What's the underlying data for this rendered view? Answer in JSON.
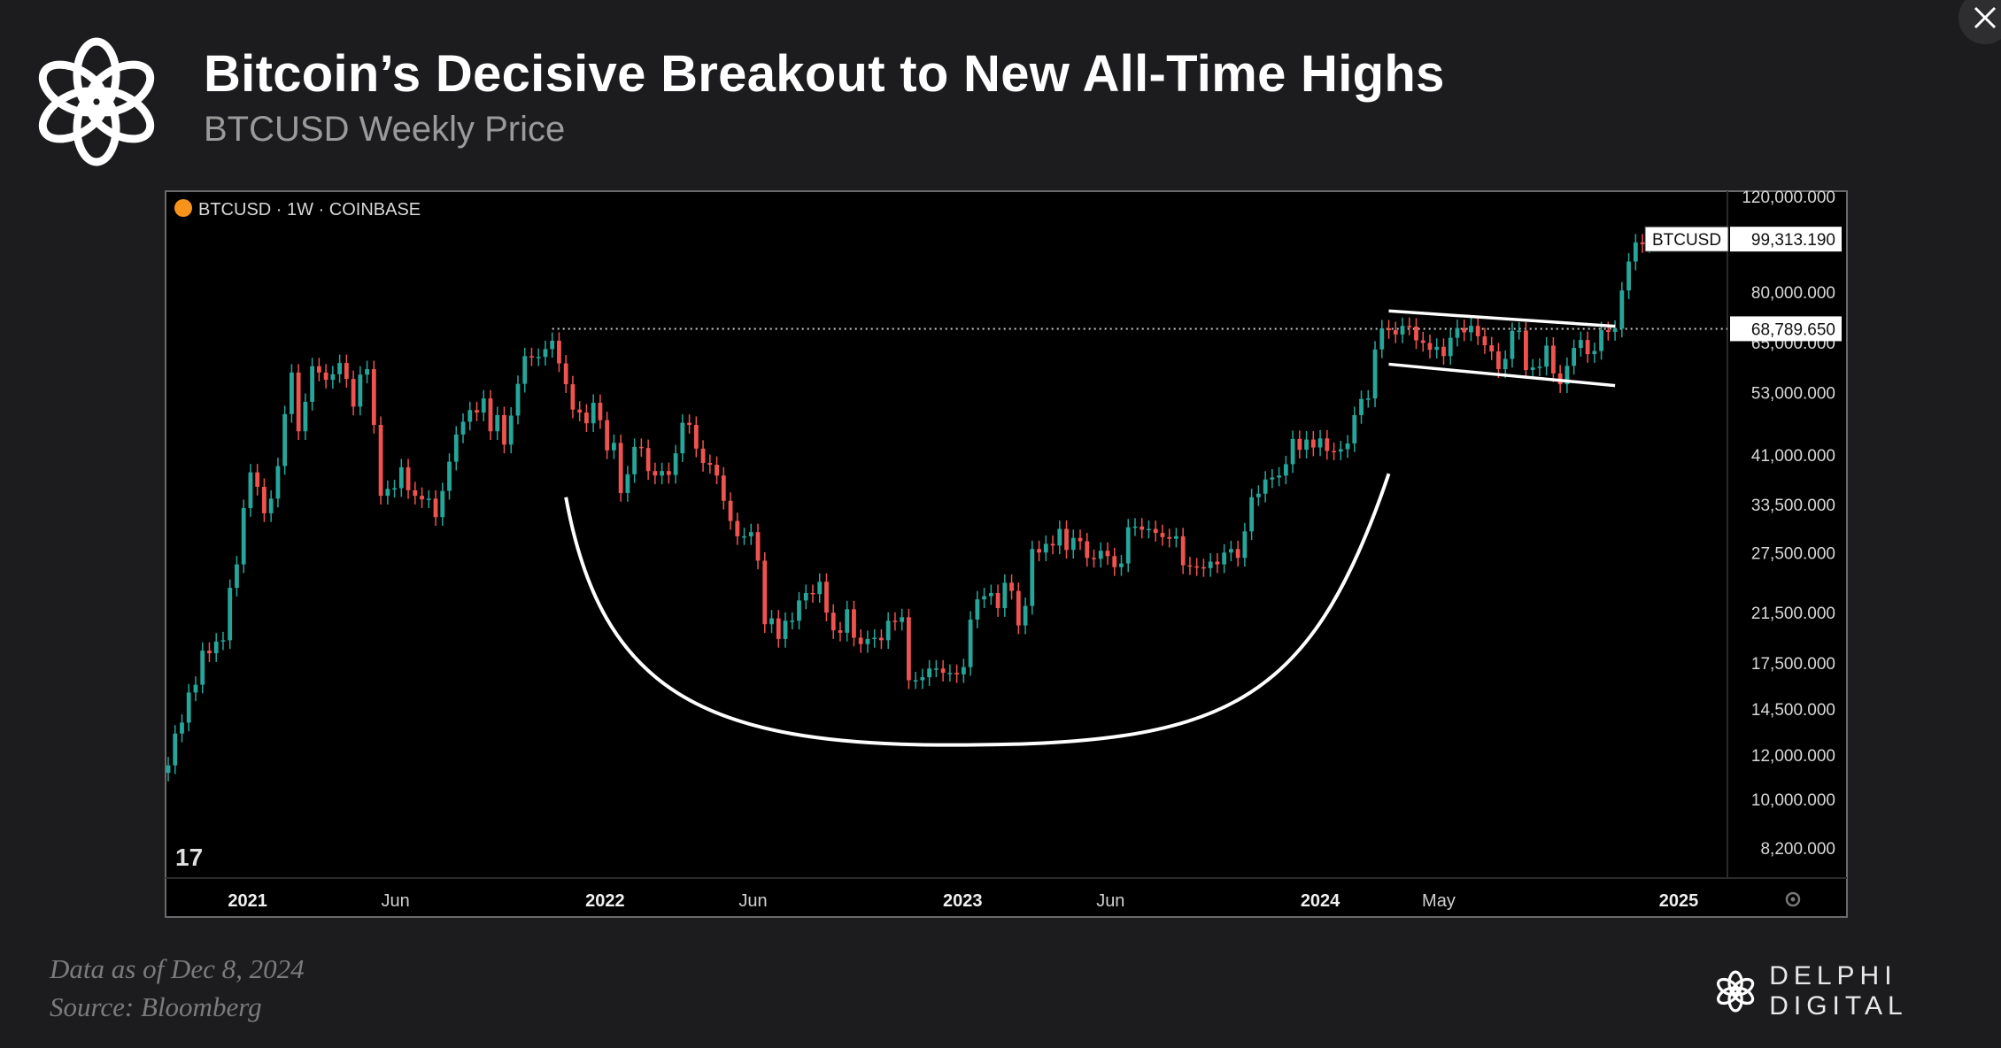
{
  "header": {
    "title": "Bitcoin’s Decisive Breakout to New All-Time Highs",
    "subtitle": "BTCUSD Weekly Price"
  },
  "footer": {
    "date_note": "Data as of Dec 8, 2024",
    "source_note": "Source: Bloomberg"
  },
  "brand": {
    "name": "DELPHI DIGITAL"
  },
  "icons": {
    "logo": "knot-logo-icon",
    "close": "close-icon",
    "symbol": "bitcoin-dot-icon",
    "tv": "tradingview-logo-icon",
    "settings": "gear-icon"
  },
  "colors": {
    "up": "#26a69a",
    "down": "#ef5350",
    "background": "#000000",
    "page": "#1c1c1e"
  },
  "chart_data": {
    "type": "candlestick",
    "symbol_label": "BTCUSD · 1W · COINBASE",
    "scale": "log",
    "ylim": [
      7300,
      120000
    ],
    "y_ticks": [
      "120,000.000",
      "80,000.000",
      "65,000.000",
      "53,000.000",
      "41,000.000",
      "33,500.000",
      "27,500.000",
      "21,500.000",
      "17,500.000",
      "14,500.000",
      "12,000.000",
      "10,000.000",
      "8,200.000"
    ],
    "x_ticks": [
      "2021",
      "Jun",
      "2022",
      "Jun",
      "2023",
      "Jun",
      "2024",
      "May",
      "2025"
    ],
    "x_tick_dates": [
      "2021-01-01",
      "2021-06-01",
      "2022-01-01",
      "2022-06-01",
      "2023-01-01",
      "2023-06-01",
      "2024-01-01",
      "2024-05-01",
      "2025-01-01"
    ],
    "x_range": [
      "2020-10-12",
      "2025-02-17"
    ],
    "price_labels": [
      {
        "name": "BTCUSD",
        "value": "99,313.190",
        "price": 99313.19
      },
      {
        "name": "",
        "value": "68,789.650",
        "price": 68789.65
      }
    ],
    "ath_line": {
      "price": 68789.65,
      "from": "2021-11-08"
    },
    "annotations": {
      "cup_curve": {
        "from": [
          "2021-11-22",
          34500
        ],
        "bottom": [
          "2022-12-19",
          12500
        ],
        "to": [
          "2024-03-11",
          38000
        ]
      },
      "flag_channel": {
        "upper": [
          [
            "2024-03-11",
            74000
          ],
          [
            "2024-10-28",
            69500
          ]
        ],
        "lower": [
          [
            "2024-03-11",
            59500
          ],
          [
            "2024-10-28",
            54500
          ]
        ]
      }
    },
    "weeks": [
      {
        "d": "2020-10-12",
        "c": 11500
      },
      {
        "d": "2020-10-19",
        "c": 13100
      },
      {
        "d": "2020-10-26",
        "c": 13700
      },
      {
        "d": "2020-11-02",
        "c": 15500
      },
      {
        "d": "2020-11-09",
        "c": 16000
      },
      {
        "d": "2020-11-16",
        "c": 18400
      },
      {
        "d": "2020-11-23",
        "c": 18200
      },
      {
        "d": "2020-11-30",
        "c": 19100
      },
      {
        "d": "2020-12-07",
        "c": 19200
      },
      {
        "d": "2020-12-14",
        "c": 23800
      },
      {
        "d": "2020-12-21",
        "c": 26200
      },
      {
        "d": "2020-12-28",
        "c": 33000
      },
      {
        "d": "2021-01-04",
        "c": 38200
      },
      {
        "d": "2021-01-11",
        "c": 36000
      },
      {
        "d": "2021-01-18",
        "c": 32300
      },
      {
        "d": "2021-01-25",
        "c": 34300
      },
      {
        "d": "2021-02-01",
        "c": 39200
      },
      {
        "d": "2021-02-08",
        "c": 48500
      },
      {
        "d": "2021-02-15",
        "c": 57500
      },
      {
        "d": "2021-02-22",
        "c": 45200
      },
      {
        "d": "2021-03-01",
        "c": 51000
      },
      {
        "d": "2021-03-08",
        "c": 59000
      },
      {
        "d": "2021-03-15",
        "c": 57500
      },
      {
        "d": "2021-03-22",
        "c": 55800
      },
      {
        "d": "2021-03-29",
        "c": 57100
      },
      {
        "d": "2021-04-05",
        "c": 59800
      },
      {
        "d": "2021-04-12",
        "c": 56000
      },
      {
        "d": "2021-04-19",
        "c": 50000
      },
      {
        "d": "2021-04-26",
        "c": 57000
      },
      {
        "d": "2021-05-03",
        "c": 58300
      },
      {
        "d": "2021-05-10",
        "c": 46400
      },
      {
        "d": "2021-05-17",
        "c": 34700
      },
      {
        "d": "2021-05-24",
        "c": 35700
      },
      {
        "d": "2021-05-31",
        "c": 35800
      },
      {
        "d": "2021-06-07",
        "c": 39000
      },
      {
        "d": "2021-06-14",
        "c": 35500
      },
      {
        "d": "2021-06-21",
        "c": 34700
      },
      {
        "d": "2021-06-28",
        "c": 34200
      },
      {
        "d": "2021-07-05",
        "c": 34300
      },
      {
        "d": "2021-07-12",
        "c": 31800
      },
      {
        "d": "2021-07-19",
        "c": 35400
      },
      {
        "d": "2021-07-26",
        "c": 39900
      },
      {
        "d": "2021-08-02",
        "c": 44600
      },
      {
        "d": "2021-08-09",
        "c": 47000
      },
      {
        "d": "2021-08-16",
        "c": 49300
      },
      {
        "d": "2021-08-23",
        "c": 48800
      },
      {
        "d": "2021-08-30",
        "c": 51700
      },
      {
        "d": "2021-09-06",
        "c": 45200
      },
      {
        "d": "2021-09-13",
        "c": 48300
      },
      {
        "d": "2021-09-20",
        "c": 42800
      },
      {
        "d": "2021-09-27",
        "c": 48200
      },
      {
        "d": "2021-10-04",
        "c": 54900
      },
      {
        "d": "2021-10-11",
        "c": 61500
      },
      {
        "d": "2021-10-18",
        "c": 61200
      },
      {
        "d": "2021-10-25",
        "c": 61300
      },
      {
        "d": "2021-11-01",
        "c": 63300
      },
      {
        "d": "2021-11-08",
        "c": 65500
      },
      {
        "d": "2021-11-15",
        "c": 59700
      },
      {
        "d": "2021-11-22",
        "c": 54800
      },
      {
        "d": "2021-11-29",
        "c": 49400
      },
      {
        "d": "2021-12-06",
        "c": 48800
      },
      {
        "d": "2021-12-13",
        "c": 46700
      },
      {
        "d": "2021-12-20",
        "c": 50800
      },
      {
        "d": "2021-12-27",
        "c": 47300
      },
      {
        "d": "2022-01-03",
        "c": 41800
      },
      {
        "d": "2022-01-10",
        "c": 43100
      },
      {
        "d": "2022-01-17",
        "c": 35100
      },
      {
        "d": "2022-01-24",
        "c": 37900
      },
      {
        "d": "2022-01-31",
        "c": 42400
      },
      {
        "d": "2022-02-07",
        "c": 42200
      },
      {
        "d": "2022-02-14",
        "c": 38400
      },
      {
        "d": "2022-02-21",
        "c": 37700
      },
      {
        "d": "2022-02-28",
        "c": 38400
      },
      {
        "d": "2022-03-07",
        "c": 37800
      },
      {
        "d": "2022-03-14",
        "c": 41300
      },
      {
        "d": "2022-03-21",
        "c": 46800
      },
      {
        "d": "2022-03-28",
        "c": 46400
      },
      {
        "d": "2022-04-04",
        "c": 42100
      },
      {
        "d": "2022-04-11",
        "c": 39700
      },
      {
        "d": "2022-04-18",
        "c": 39400
      },
      {
        "d": "2022-04-25",
        "c": 37700
      },
      {
        "d": "2022-05-02",
        "c": 34000
      },
      {
        "d": "2022-05-09",
        "c": 31300
      },
      {
        "d": "2022-05-16",
        "c": 29400
      },
      {
        "d": "2022-05-23",
        "c": 29400
      },
      {
        "d": "2022-05-30",
        "c": 29900
      },
      {
        "d": "2022-06-06",
        "c": 26600
      },
      {
        "d": "2022-06-13",
        "c": 20500
      },
      {
        "d": "2022-06-20",
        "c": 21000
      },
      {
        "d": "2022-06-27",
        "c": 19300
      },
      {
        "d": "2022-07-04",
        "c": 20800
      },
      {
        "d": "2022-07-11",
        "c": 20800
      },
      {
        "d": "2022-07-18",
        "c": 22600
      },
      {
        "d": "2022-07-25",
        "c": 23300
      },
      {
        "d": "2022-08-01",
        "c": 23200
      },
      {
        "d": "2022-08-08",
        "c": 24400
      },
      {
        "d": "2022-08-15",
        "c": 21500
      },
      {
        "d": "2022-08-22",
        "c": 20000
      },
      {
        "d": "2022-08-29",
        "c": 19800
      },
      {
        "d": "2022-09-05",
        "c": 21800
      },
      {
        "d": "2022-09-12",
        "c": 19400
      },
      {
        "d": "2022-09-19",
        "c": 18900
      },
      {
        "d": "2022-09-26",
        "c": 19300
      },
      {
        "d": "2022-10-03",
        "c": 19400
      },
      {
        "d": "2022-10-10",
        "c": 19200
      },
      {
        "d": "2022-10-17",
        "c": 20800
      },
      {
        "d": "2022-10-24",
        "c": 20700
      },
      {
        "d": "2022-10-31",
        "c": 21100
      },
      {
        "d": "2022-11-07",
        "c": 16300
      },
      {
        "d": "2022-11-14",
        "c": 16300
      },
      {
        "d": "2022-11-21",
        "c": 16500
      },
      {
        "d": "2022-11-28",
        "c": 17100
      },
      {
        "d": "2022-12-05",
        "c": 17100
      },
      {
        "d": "2022-12-12",
        "c": 16800
      },
      {
        "d": "2022-12-19",
        "c": 16800
      },
      {
        "d": "2022-12-26",
        "c": 16700
      },
      {
        "d": "2023-01-02",
        "c": 17200
      },
      {
        "d": "2023-01-09",
        "c": 20900
      },
      {
        "d": "2023-01-16",
        "c": 22700
      },
      {
        "d": "2023-01-23",
        "c": 23000
      },
      {
        "d": "2023-01-30",
        "c": 23300
      },
      {
        "d": "2023-02-06",
        "c": 21900
      },
      {
        "d": "2023-02-13",
        "c": 24300
      },
      {
        "d": "2023-02-20",
        "c": 23500
      },
      {
        "d": "2023-02-27",
        "c": 20400
      },
      {
        "d": "2023-03-06",
        "c": 22100
      },
      {
        "d": "2023-03-13",
        "c": 27900
      },
      {
        "d": "2023-03-20",
        "c": 27500
      },
      {
        "d": "2023-03-27",
        "c": 28500
      },
      {
        "d": "2023-04-03",
        "c": 28300
      },
      {
        "d": "2023-04-10",
        "c": 30300
      },
      {
        "d": "2023-04-17",
        "c": 27800
      },
      {
        "d": "2023-04-24",
        "c": 29200
      },
      {
        "d": "2023-05-01",
        "c": 28800
      },
      {
        "d": "2023-05-08",
        "c": 26900
      },
      {
        "d": "2023-05-15",
        "c": 26800
      },
      {
        "d": "2023-05-22",
        "c": 27700
      },
      {
        "d": "2023-05-29",
        "c": 27100
      },
      {
        "d": "2023-06-05",
        "c": 25900
      },
      {
        "d": "2023-06-12",
        "c": 26300
      },
      {
        "d": "2023-06-19",
        "c": 30500
      },
      {
        "d": "2023-06-26",
        "c": 30600
      },
      {
        "d": "2023-07-03",
        "c": 30200
      },
      {
        "d": "2023-07-10",
        "c": 30300
      },
      {
        "d": "2023-07-17",
        "c": 29800
      },
      {
        "d": "2023-07-24",
        "c": 29300
      },
      {
        "d": "2023-07-31",
        "c": 29100
      },
      {
        "d": "2023-08-07",
        "c": 29400
      },
      {
        "d": "2023-08-14",
        "c": 26100
      },
      {
        "d": "2023-08-21",
        "c": 26000
      },
      {
        "d": "2023-08-28",
        "c": 25900
      },
      {
        "d": "2023-09-04",
        "c": 25800
      },
      {
        "d": "2023-09-11",
        "c": 26500
      },
      {
        "d": "2023-09-18",
        "c": 26200
      },
      {
        "d": "2023-09-25",
        "c": 27500
      },
      {
        "d": "2023-10-02",
        "c": 27900
      },
      {
        "d": "2023-10-09",
        "c": 26900
      },
      {
        "d": "2023-10-16",
        "c": 30000
      },
      {
        "d": "2023-10-23",
        "c": 34500
      },
      {
        "d": "2023-10-30",
        "c": 35000
      },
      {
        "d": "2023-11-06",
        "c": 37100
      },
      {
        "d": "2023-11-13",
        "c": 37400
      },
      {
        "d": "2023-11-20",
        "c": 37700
      },
      {
        "d": "2023-11-27",
        "c": 39500
      },
      {
        "d": "2023-12-04",
        "c": 43800
      },
      {
        "d": "2023-12-11",
        "c": 41900
      },
      {
        "d": "2023-12-18",
        "c": 43700
      },
      {
        "d": "2023-12-25",
        "c": 42300
      },
      {
        "d": "2024-01-01",
        "c": 43900
      },
      {
        "d": "2024-01-08",
        "c": 41700
      },
      {
        "d": "2024-01-15",
        "c": 41600
      },
      {
        "d": "2024-01-22",
        "c": 42000
      },
      {
        "d": "2024-01-29",
        "c": 43000
      },
      {
        "d": "2024-02-05",
        "c": 48300
      },
      {
        "d": "2024-02-12",
        "c": 51600
      },
      {
        "d": "2024-02-19",
        "c": 51700
      },
      {
        "d": "2024-02-26",
        "c": 63200
      },
      {
        "d": "2024-03-04",
        "c": 68900
      },
      {
        "d": "2024-03-11",
        "c": 68400
      },
      {
        "d": "2024-03-18",
        "c": 67200
      },
      {
        "d": "2024-03-25",
        "c": 69600
      },
      {
        "d": "2024-04-01",
        "c": 69400
      },
      {
        "d": "2024-04-08",
        "c": 65600
      },
      {
        "d": "2024-04-15",
        "c": 64900
      },
      {
        "d": "2024-04-22",
        "c": 63100
      },
      {
        "d": "2024-04-29",
        "c": 63900
      },
      {
        "d": "2024-05-06",
        "c": 61500
      },
      {
        "d": "2024-05-13",
        "c": 66300
      },
      {
        "d": "2024-05-20",
        "c": 69000
      },
      {
        "d": "2024-05-27",
        "c": 67800
      },
      {
        "d": "2024-06-03",
        "c": 69600
      },
      {
        "d": "2024-06-10",
        "c": 66700
      },
      {
        "d": "2024-06-17",
        "c": 64300
      },
      {
        "d": "2024-06-24",
        "c": 62700
      },
      {
        "d": "2024-07-01",
        "c": 58300
      },
      {
        "d": "2024-07-08",
        "c": 60800
      },
      {
        "d": "2024-07-15",
        "c": 68200
      },
      {
        "d": "2024-07-22",
        "c": 68300
      },
      {
        "d": "2024-07-29",
        "c": 58100
      },
      {
        "d": "2024-08-05",
        "c": 58700
      },
      {
        "d": "2024-08-12",
        "c": 58900
      },
      {
        "d": "2024-08-19",
        "c": 64200
      },
      {
        "d": "2024-08-26",
        "c": 57300
      },
      {
        "d": "2024-09-02",
        "c": 54800
      },
      {
        "d": "2024-09-09",
        "c": 59100
      },
      {
        "d": "2024-09-16",
        "c": 63600
      },
      {
        "d": "2024-09-23",
        "c": 65700
      },
      {
        "d": "2024-09-30",
        "c": 62000
      },
      {
        "d": "2024-10-07",
        "c": 62800
      },
      {
        "d": "2024-10-14",
        "c": 68400
      },
      {
        "d": "2024-10-21",
        "c": 67900
      },
      {
        "d": "2024-10-28",
        "c": 68800
      },
      {
        "d": "2024-11-04",
        "c": 80500
      },
      {
        "d": "2024-11-11",
        "c": 90600
      },
      {
        "d": "2024-11-18",
        "c": 98000
      },
      {
        "d": "2024-11-25",
        "c": 97300
      },
      {
        "d": "2024-12-02",
        "c": 99313
      }
    ]
  }
}
